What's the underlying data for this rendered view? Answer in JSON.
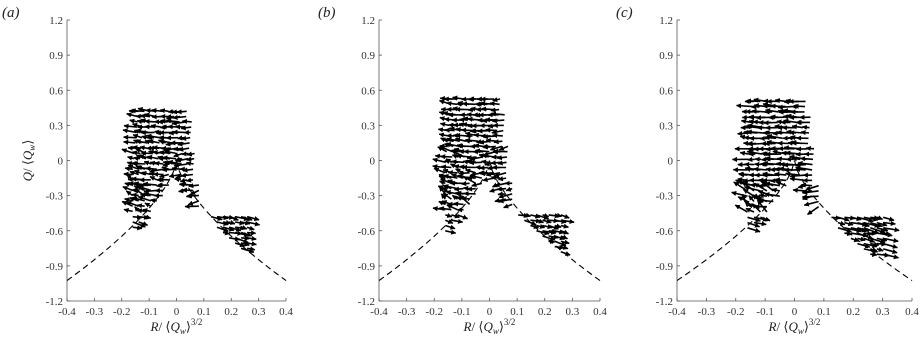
{
  "chart_data": [
    {
      "type": "quiver",
      "panel_label": "(a)",
      "xlabel": "R/⟨Q_w⟩^{3/2}",
      "ylabel": "Q/⟨Q_w⟩",
      "xlim": [
        -0.4,
        0.4
      ],
      "ylim": [
        -1.2,
        1.2
      ],
      "xticks": [
        "-0.4",
        "-0.3",
        "-0.2",
        "-0.1",
        "0",
        "0.1",
        "0.2",
        "0.3",
        "0.4"
      ],
      "yticks": [
        "-1.2",
        "-0.9",
        "-0.6",
        "-0.3",
        "0",
        "0.3",
        "0.6",
        "0.9",
        "1.2"
      ],
      "grid": false,
      "vieillefosse_line": {
        "style": "dashed",
        "x_range": [
          -0.4,
          0.4
        ]
      },
      "field_extent": {
        "x": [
          -0.17,
          0.27
        ],
        "y": [
          -0.75,
          0.45
        ]
      }
    },
    {
      "type": "quiver",
      "panel_label": "(b)",
      "xlabel": "R/⟨Q_w⟩^{3/2}",
      "ylabel": "",
      "xlim": [
        -0.4,
        0.4
      ],
      "ylim": [
        -1.2,
        1.2
      ],
      "xticks": [
        "-0.4",
        "-0.3",
        "-0.2",
        "-0.1",
        "0",
        "0.1",
        "0.2",
        "0.3",
        "0.4"
      ],
      "yticks": [
        "-1.2",
        "-0.9",
        "-0.6",
        "-0.3",
        "0",
        "0.3",
        "0.6",
        "0.9",
        "1.2"
      ],
      "grid": false,
      "vieillefosse_line": {
        "style": "dashed",
        "x_range": [
          -0.4,
          0.4
        ]
      },
      "field_extent": {
        "x": [
          -0.18,
          0.26
        ],
        "y": [
          -0.78,
          0.53
        ]
      }
    },
    {
      "type": "quiver",
      "panel_label": "(c)",
      "xlabel": "R/⟨Q_w⟩^{3/2}",
      "ylabel": "",
      "xlim": [
        -0.4,
        0.4
      ],
      "ylim": [
        -1.2,
        1.2
      ],
      "xticks": [
        "-0.4",
        "-0.3",
        "-0.2",
        "-0.1",
        "0",
        "0.1",
        "0.2",
        "0.3",
        "0.4"
      ],
      "yticks": [
        "-1.2",
        "-0.9",
        "-0.6",
        "-0.3",
        "0",
        "0.3",
        "0.6",
        "0.9",
        "1.2"
      ],
      "grid": false,
      "vieillefosse_line": {
        "style": "dashed",
        "x_range": [
          -0.4,
          0.4
        ]
      },
      "field_extent": {
        "x": [
          -0.17,
          0.32
        ],
        "y": [
          -0.8,
          0.53
        ]
      }
    }
  ]
}
